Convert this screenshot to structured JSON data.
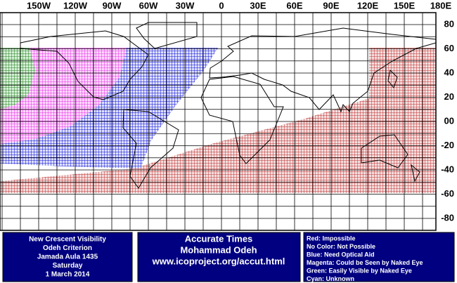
{
  "map": {
    "longitude_labels": [
      "150W",
      "120W",
      "90W",
      "60W",
      "30W",
      "0",
      "30E",
      "60E",
      "90E",
      "120E",
      "150E",
      "180E"
    ],
    "latitude_labels": [
      "80",
      "60",
      "40",
      "20",
      "00",
      "-20",
      "-40",
      "-60",
      "-80"
    ]
  },
  "info": {
    "left": [
      "New Crescent Visibility",
      "Odeh Criterion",
      "Jamada Aula 1435",
      "Saturday",
      "1 March 2014"
    ],
    "center": [
      "Accurate Times",
      "Mohammad Odeh",
      "www.icoproject.org/accut.html"
    ],
    "right": [
      "Red: Impossible",
      "No Color: Not Possible",
      "Blue: Need Optical Aid",
      "Magenta: Could be Seen by Naked Eye",
      "Green: Easily Visible by Naked Eye",
      "Cyan: Unknown"
    ]
  }
}
